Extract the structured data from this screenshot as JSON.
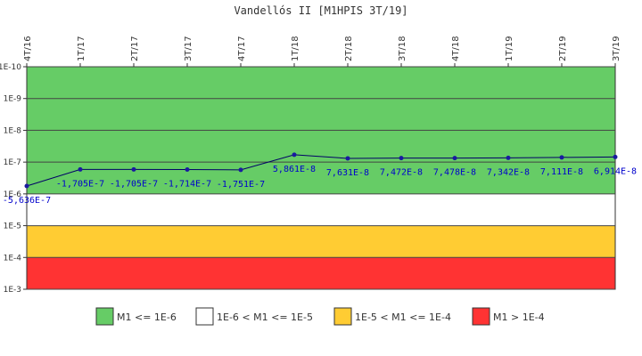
{
  "chart_data": {
    "type": "line",
    "title": "Vandellós II [M1HPIS 3T/19]",
    "categories": [
      "4T/16",
      "1T/17",
      "2T/17",
      "3T/17",
      "4T/17",
      "1T/18",
      "2T/18",
      "3T/18",
      "4T/18",
      "1T/19",
      "2T/19",
      "3T/19"
    ],
    "series": [
      {
        "values": [
          5.636e-07,
          1.705e-07,
          1.705e-07,
          1.714e-07,
          1.751e-07,
          5.861e-08,
          7.631e-08,
          7.472e-08,
          7.478e-08,
          7.342e-08,
          7.111e-08,
          6.914e-08
        ],
        "labels": [
          "-5,636E-7",
          "-1,705E-7",
          "-1,705E-7",
          "-1,714E-7",
          "-1,751E-7",
          "5,861E-8",
          "7,631E-8",
          "7,472E-8",
          "7,478E-8",
          "7,342E-8",
          "7,111E-8",
          "6,914E-8"
        ],
        "color": "#000066"
      }
    ],
    "y_scale": "log",
    "y_inverted": true,
    "ylim": [
      1e-10,
      0.001
    ],
    "y_ticks": [
      {
        "value": 1e-10,
        "label": "1E-10"
      },
      {
        "value": 1e-09,
        "label": "1E-9"
      },
      {
        "value": 1e-08,
        "label": "1E-8"
      },
      {
        "value": 1e-07,
        "label": "1E-7"
      },
      {
        "value": 1e-06,
        "label": "1E-6"
      },
      {
        "value": 1e-05,
        "label": "1E-5"
      },
      {
        "value": 0.0001,
        "label": "1E-4"
      },
      {
        "value": 0.001,
        "label": "1E-3"
      }
    ],
    "bands": [
      {
        "from": 1e-10,
        "to": 1e-06,
        "color": "#66cc66",
        "label": "M1 <= 1E-6"
      },
      {
        "from": 1e-06,
        "to": 1e-05,
        "color": "#ffffff",
        "label": "1E-6 < M1 <= 1E-5"
      },
      {
        "from": 1e-05,
        "to": 0.0001,
        "color": "#ffcc33",
        "label": "1E-5 < M1 <= 1E-4"
      },
      {
        "from": 0.0001,
        "to": 0.001,
        "color": "#ff3333",
        "label": "M1 > 1E-4"
      }
    ],
    "legend_position": "bottom"
  }
}
